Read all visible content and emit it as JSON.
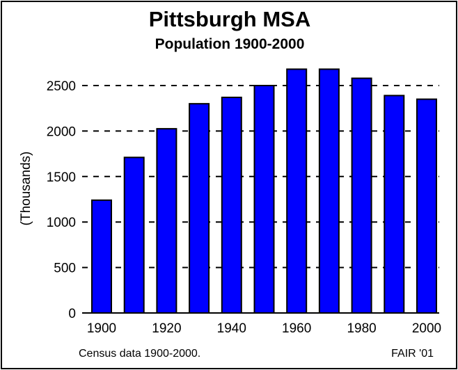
{
  "chart_data": {
    "type": "bar",
    "title": "Pittsburgh MSA",
    "subtitle": "Population 1900-2000",
    "xlabel": "",
    "ylabel": "(Thousands)",
    "categories": [
      "1900",
      "1910",
      "1920",
      "1930",
      "1940",
      "1950",
      "1960",
      "1970",
      "1980",
      "1990",
      "2000"
    ],
    "values": [
      1240,
      1710,
      2025,
      2300,
      2370,
      2500,
      2680,
      2680,
      2580,
      2390,
      2350
    ],
    "x_tick_labels": [
      "1900",
      "1920",
      "1940",
      "1960",
      "1980",
      "2000"
    ],
    "y_ticks": [
      0,
      500,
      1000,
      1500,
      2000,
      2500
    ],
    "ylim": [
      0,
      2800
    ],
    "grid": "horizontal dashed",
    "bar_color": "#0000ff"
  },
  "footer": {
    "source": "Census data 1900-2000.",
    "credit": "FAIR '01"
  }
}
